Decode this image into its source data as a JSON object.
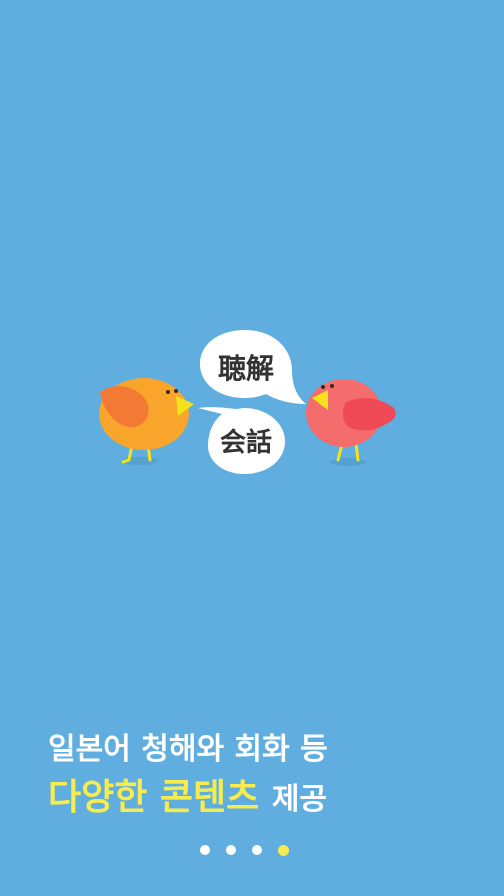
{
  "illustration": {
    "bubble_top_text": "聴解",
    "bubble_bottom_text": "会話"
  },
  "caption": {
    "line1": "일본어 청해와 회화 등",
    "line2_highlight": "다양한 콘텐츠",
    "line2_rest": "제공"
  },
  "pager": {
    "total": 4,
    "active_index": 3
  },
  "colors": {
    "background": "#60aee0",
    "orange_bird": "#f9a42a",
    "red_bird": "#f46c6c",
    "beak": "#f6e21a",
    "highlight_text": "#f7ec4e",
    "active_dot": "#f2ec54"
  }
}
